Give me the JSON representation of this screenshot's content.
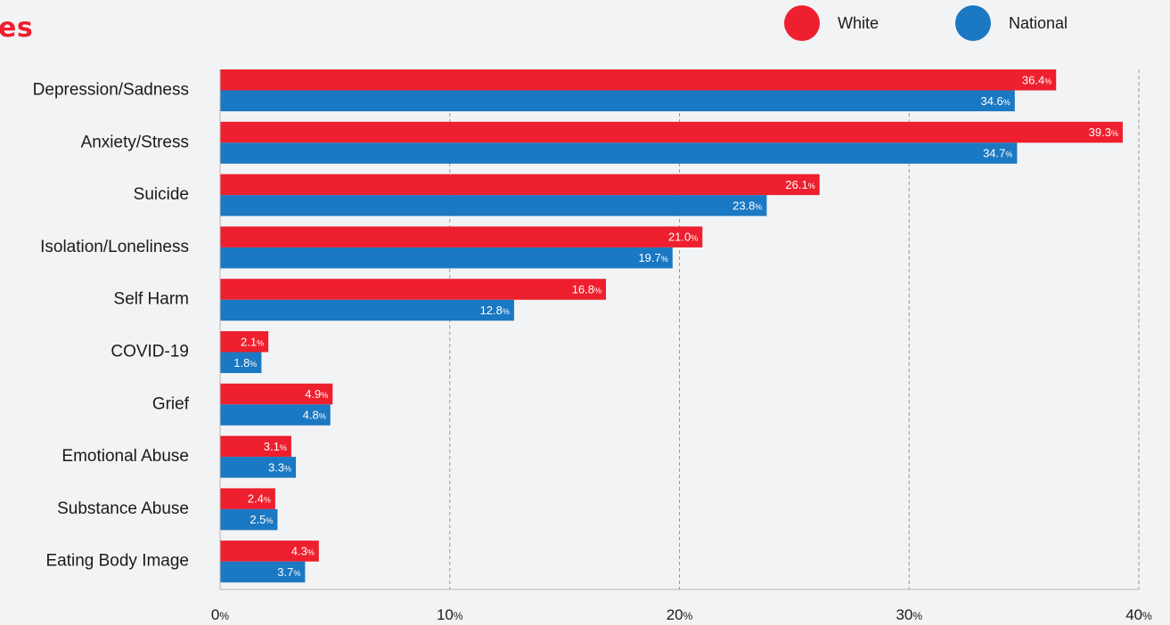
{
  "title": "es",
  "legend": [
    {
      "label": "White",
      "color": "#ee1f2e"
    },
    {
      "label": "National",
      "color": "#1b78c2"
    }
  ],
  "chart_data": {
    "type": "bar",
    "orientation": "horizontal",
    "categories": [
      "Depression/Sadness",
      "Anxiety/Stress",
      "Suicide",
      "Isolation/Loneliness",
      "Self Harm",
      "COVID-19",
      "Grief",
      "Emotional Abuse",
      "Substance Abuse",
      "Eating Body Image"
    ],
    "series": [
      {
        "name": "White",
        "color": "#ee1f2e",
        "values": [
          36.4,
          39.3,
          26.1,
          21.0,
          16.8,
          2.1,
          4.9,
          3.1,
          2.4,
          4.3
        ]
      },
      {
        "name": "National",
        "color": "#1b78c2",
        "values": [
          34.6,
          34.7,
          23.8,
          19.7,
          12.8,
          1.8,
          4.8,
          3.3,
          2.5,
          3.7
        ]
      }
    ],
    "xlim": [
      0,
      40
    ],
    "xticks": [
      0,
      10,
      20,
      30,
      40
    ],
    "value_suffix": "%",
    "grid": "vertical dashed",
    "legend_position": "top-right"
  }
}
